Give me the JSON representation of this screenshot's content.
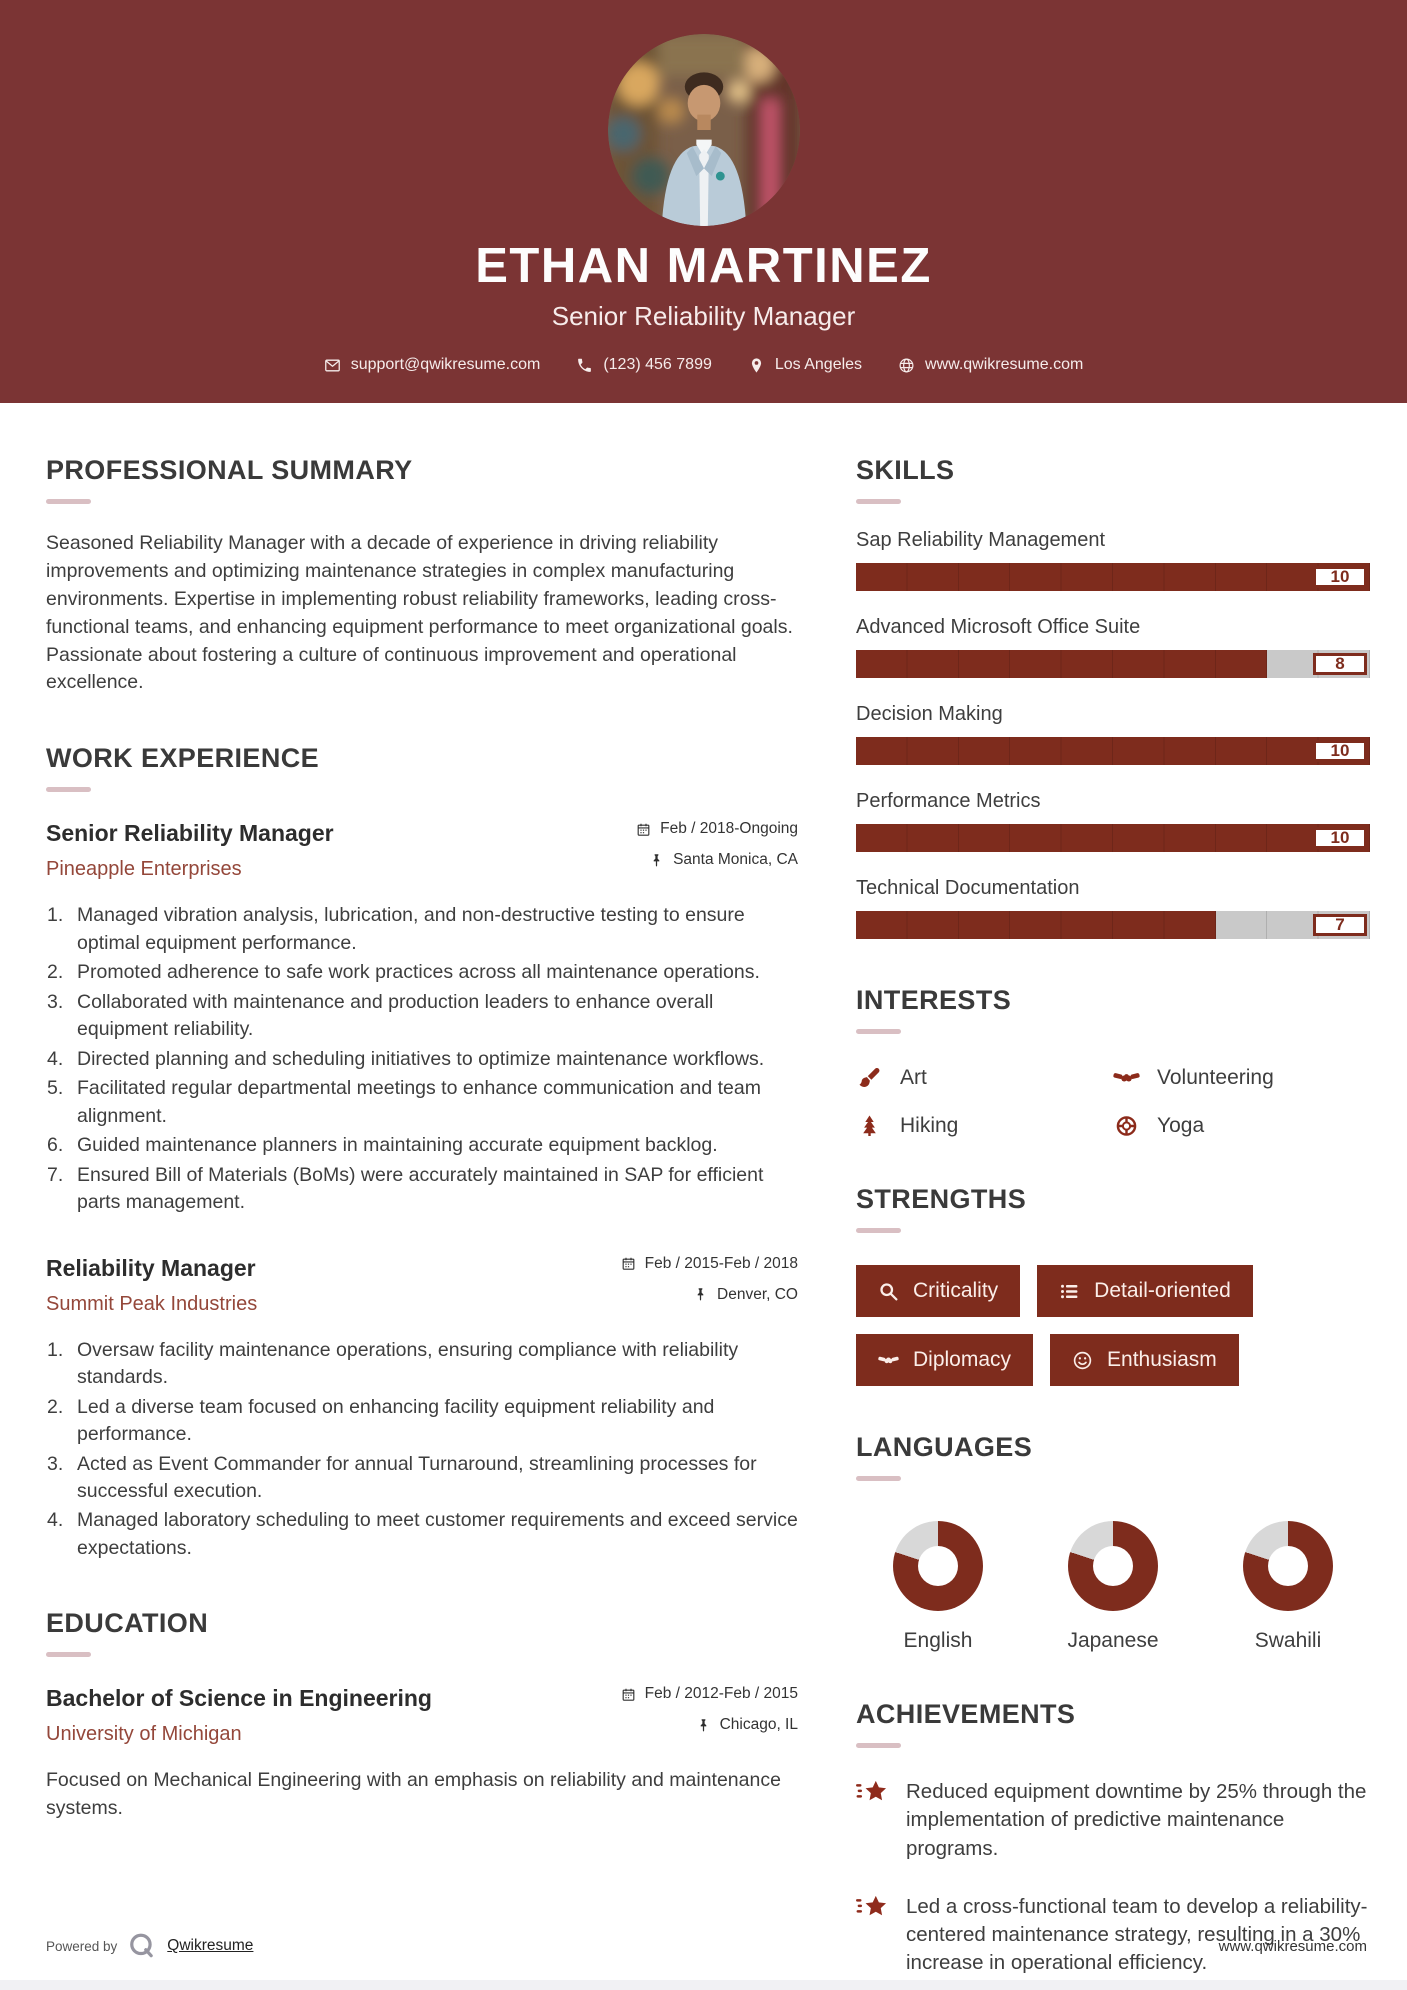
{
  "colors": {
    "header_bg": "#7b3434",
    "accent": "#7e2c1d",
    "icon_accent": "#8c2b1b",
    "company_text": "#94473a",
    "bar_track": "#c9c9c9",
    "donut_track": "#d8d8d8",
    "heading_underline": "#d9bfc3"
  },
  "header": {
    "name": "ETHAN MARTINEZ",
    "title": "Senior Reliability Manager",
    "contacts": [
      {
        "icon": "email-icon",
        "text": "support@qwikresume.com"
      },
      {
        "icon": "phone-icon",
        "text": "(123) 456 7899"
      },
      {
        "icon": "location-icon",
        "text": "Los Angeles"
      },
      {
        "icon": "globe-icon",
        "text": "www.qwikresume.com"
      }
    ]
  },
  "summary": {
    "heading": "PROFESSIONAL SUMMARY",
    "text": "Seasoned Reliability Manager with a decade of experience in driving reliability improvements and optimizing maintenance strategies in complex manufacturing environments. Expertise in implementing robust reliability frameworks, leading cross-functional teams, and enhancing equipment performance to meet organizational goals. Passionate about fostering a culture of continuous improvement and operational excellence."
  },
  "experience": {
    "heading": "WORK EXPERIENCE",
    "jobs": [
      {
        "title": "Senior Reliability Manager",
        "company": "Pineapple Enterprises",
        "dates": "Feb / 2018-Ongoing",
        "location": "Santa Monica, CA",
        "bullets": [
          "Managed vibration analysis, lubrication, and non-destructive testing to ensure optimal equipment performance.",
          "Promoted adherence to safe work practices across all maintenance operations.",
          "Collaborated with maintenance and production leaders to enhance overall equipment reliability.",
          "Directed planning and scheduling initiatives to optimize maintenance workflows.",
          "Facilitated regular departmental meetings to enhance communication and team alignment.",
          "Guided maintenance planners in maintaining accurate equipment backlog.",
          "Ensured Bill of Materials (BoMs) were accurately maintained in SAP for efficient parts management."
        ]
      },
      {
        "title": "Reliability Manager",
        "company": "Summit Peak Industries",
        "dates": "Feb / 2015-Feb / 2018",
        "location": "Denver, CO",
        "bullets": [
          "Oversaw facility maintenance operations, ensuring compliance with reliability standards.",
          "Led a diverse team focused on enhancing facility equipment reliability and performance.",
          "Acted as Event Commander for annual Turnaround, streamlining processes for successful execution.",
          "Managed laboratory scheduling to meet customer requirements and exceed service expectations."
        ]
      }
    ]
  },
  "education": {
    "heading": "EDUCATION",
    "degree": "Bachelor of Science in Engineering",
    "school": "University of Michigan",
    "dates": "Feb / 2012-Feb / 2015",
    "location": "Chicago, IL",
    "description": "Focused on Mechanical Engineering with an emphasis on reliability and maintenance systems."
  },
  "skills": {
    "heading": "SKILLS",
    "max": 10,
    "items": [
      {
        "label": "Sap Reliability Management",
        "value": 10,
        "percent": 100
      },
      {
        "label": "Advanced Microsoft Office Suite",
        "value": 8,
        "percent": 80
      },
      {
        "label": "Decision Making",
        "value": 10,
        "percent": 100
      },
      {
        "label": "Performance Metrics",
        "value": 10,
        "percent": 100
      },
      {
        "label": "Technical Documentation",
        "value": 7,
        "percent": 70
      }
    ]
  },
  "interests": {
    "heading": "INTERESTS",
    "items": [
      {
        "icon": "paintbrush-icon",
        "label": "Art"
      },
      {
        "icon": "handshake-icon",
        "label": "Volunteering"
      },
      {
        "icon": "tree-icon",
        "label": "Hiking"
      },
      {
        "icon": "lifebuoy-icon",
        "label": "Yoga"
      }
    ]
  },
  "strengths": {
    "heading": "STRENGTHS",
    "items": [
      {
        "icon": "search-icon",
        "label": "Criticality"
      },
      {
        "icon": "list-icon",
        "label": "Detail-oriented"
      },
      {
        "icon": "handshake-icon",
        "label": "Diplomacy"
      },
      {
        "icon": "smiley-icon",
        "label": "Enthusiasm"
      }
    ]
  },
  "languages": {
    "heading": "LANGUAGES",
    "items": [
      {
        "label": "English",
        "percent": 80
      },
      {
        "label": "Japanese",
        "percent": 80
      },
      {
        "label": "Swahili",
        "percent": 80
      }
    ]
  },
  "achievements": {
    "heading": "ACHIEVEMENTS",
    "items": [
      "Reduced equipment downtime by 25% through the implementation of predictive maintenance programs.",
      "Led a cross-functional team to develop a reliability-centered maintenance strategy, resulting in a 30% increase in operational efficiency."
    ]
  },
  "footer": {
    "powered_by": "Powered by",
    "brand": "Qwikresume",
    "site": "www.qwikresume.com"
  }
}
